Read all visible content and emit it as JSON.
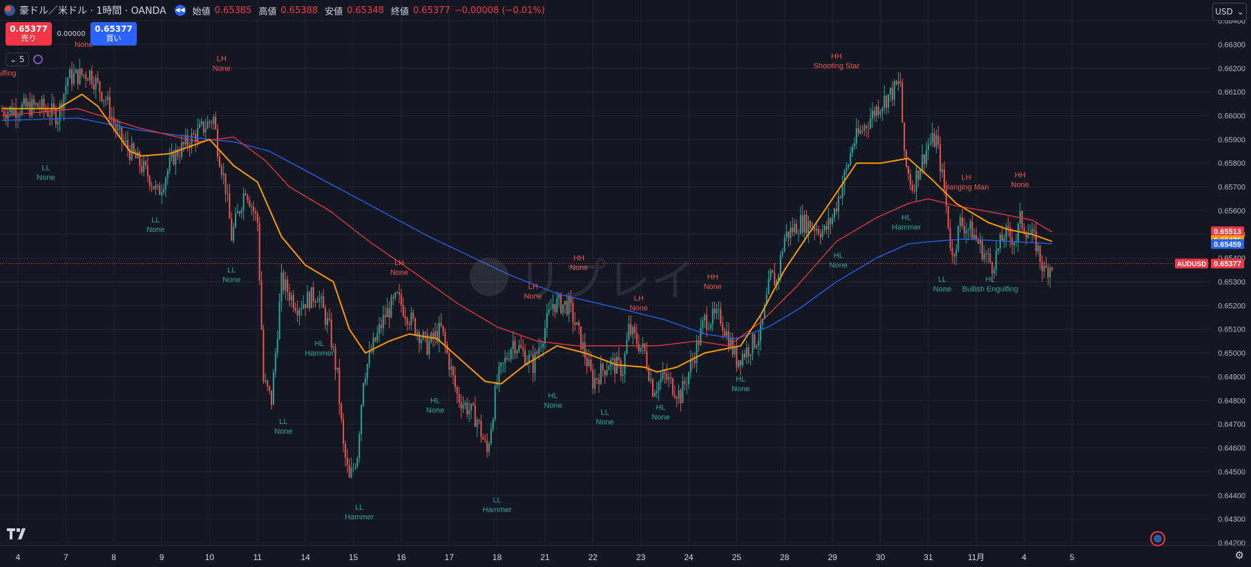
{
  "header": {
    "title": "豪ドル／米ドル · 1時間 · OANDA",
    "open_label": "始値",
    "open": "0.65385",
    "high_label": "高値",
    "high": "0.65388",
    "low_label": "安値",
    "low": "0.65348",
    "close_label": "終値",
    "close": "0.65377",
    "change": "−0.00008 (−0.01%)"
  },
  "trade": {
    "sell_price": "0.65377",
    "sell_label": "売り",
    "spread": "0.00000",
    "buy_price": "0.65377",
    "buy_label": "買い"
  },
  "indicator": {
    "count": "5"
  },
  "currency_menu": {
    "label": "USD"
  },
  "watermark": "リプレイ",
  "colors": {
    "background": "#131722",
    "up": "#26a69a",
    "down": "#ef5350",
    "ema_fast": "#ff9800",
    "ema_mid": "#f23645",
    "ema_slow": "#2962ff"
  },
  "chart_data": {
    "type": "candlestick",
    "symbol": "AUDUSD",
    "interval": "1時間",
    "ylim": [
      0.642,
      0.6647
    ],
    "y_ticks": [
      "0.66400",
      "0.66300",
      "0.66200",
      "0.66100",
      "0.66000",
      "0.65900",
      "0.65800",
      "0.65700",
      "0.65600",
      "0.65500",
      "0.65400",
      "0.65300",
      "0.65200",
      "0.65100",
      "0.65000",
      "0.64900",
      "0.64800",
      "0.64700",
      "0.64600",
      "0.64500",
      "0.64400",
      "0.64300",
      "0.64200"
    ],
    "x_ticks": [
      {
        "i": 0,
        "label": "4"
      },
      {
        "i": 24,
        "label": "7"
      },
      {
        "i": 48,
        "label": "8"
      },
      {
        "i": 72,
        "label": "9"
      },
      {
        "i": 96,
        "label": "10"
      },
      {
        "i": 120,
        "label": "11"
      },
      {
        "i": 144,
        "label": "14"
      },
      {
        "i": 168,
        "label": "15"
      },
      {
        "i": 192,
        "label": "16"
      },
      {
        "i": 216,
        "label": "17"
      },
      {
        "i": 240,
        "label": "18"
      },
      {
        "i": 264,
        "label": "21"
      },
      {
        "i": 288,
        "label": "22"
      },
      {
        "i": 312,
        "label": "23"
      },
      {
        "i": 336,
        "label": "24"
      },
      {
        "i": 360,
        "label": "25"
      },
      {
        "i": 384,
        "label": "28"
      },
      {
        "i": 408,
        "label": "29"
      },
      {
        "i": 432,
        "label": "30"
      },
      {
        "i": 456,
        "label": "31"
      },
      {
        "i": 480,
        "label": "11月"
      },
      {
        "i": 504,
        "label": "4"
      },
      {
        "i": 528,
        "label": "5"
      }
    ],
    "anchors": [
      [
        -8,
        0.6602
      ],
      [
        0,
        0.6603
      ],
      [
        10,
        0.6604
      ],
      [
        20,
        0.66
      ],
      [
        25,
        0.6616
      ],
      [
        36,
        0.6618
      ],
      [
        44,
        0.6607
      ],
      [
        50,
        0.6592
      ],
      [
        66,
        0.6574
      ],
      [
        70,
        0.6567
      ],
      [
        78,
        0.6583
      ],
      [
        84,
        0.6588
      ],
      [
        98,
        0.6599
      ],
      [
        100,
        0.6587
      ],
      [
        104,
        0.657
      ],
      [
        107,
        0.6549
      ],
      [
        114,
        0.657
      ],
      [
        120,
        0.6555
      ],
      [
        123,
        0.6488
      ],
      [
        127,
        0.648
      ],
      [
        132,
        0.653
      ],
      [
        140,
        0.652
      ],
      [
        150,
        0.6525
      ],
      [
        156,
        0.651
      ],
      [
        160,
        0.649
      ],
      [
        163,
        0.646
      ],
      [
        166,
        0.6446
      ],
      [
        170,
        0.6458
      ],
      [
        173,
        0.649
      ],
      [
        178,
        0.6503
      ],
      [
        184,
        0.6516
      ],
      [
        190,
        0.6523
      ],
      [
        196,
        0.6515
      ],
      [
        205,
        0.6503
      ],
      [
        212,
        0.651
      ],
      [
        220,
        0.6482
      ],
      [
        230,
        0.6472
      ],
      [
        235,
        0.6458
      ],
      [
        240,
        0.6488
      ],
      [
        248,
        0.6505
      ],
      [
        258,
        0.6495
      ],
      [
        268,
        0.6521
      ],
      [
        276,
        0.652
      ],
      [
        282,
        0.6505
      ],
      [
        288,
        0.6488
      ],
      [
        296,
        0.6496
      ],
      [
        303,
        0.6493
      ],
      [
        306,
        0.651
      ],
      [
        314,
        0.65
      ],
      [
        318,
        0.6485
      ],
      [
        324,
        0.649
      ],
      [
        332,
        0.6482
      ],
      [
        338,
        0.6497
      ],
      [
        344,
        0.6514
      ],
      [
        352,
        0.6515
      ],
      [
        360,
        0.6497
      ],
      [
        366,
        0.6502
      ],
      [
        372,
        0.6508
      ],
      [
        377,
        0.6532
      ],
      [
        380,
        0.653
      ],
      [
        384,
        0.6549
      ],
      [
        392,
        0.6555
      ],
      [
        398,
        0.6554
      ],
      [
        404,
        0.6551
      ],
      [
        408,
        0.6557
      ],
      [
        416,
        0.658
      ],
      [
        418,
        0.6588
      ],
      [
        430,
        0.6603
      ],
      [
        438,
        0.661
      ],
      [
        442,
        0.6614
      ],
      [
        444,
        0.6581
      ],
      [
        448,
        0.657
      ],
      [
        456,
        0.6588
      ],
      [
        460,
        0.659
      ],
      [
        464,
        0.6569
      ],
      [
        468,
        0.654
      ],
      [
        472,
        0.6555
      ],
      [
        478,
        0.6551
      ],
      [
        484,
        0.6542
      ],
      [
        488,
        0.6537
      ],
      [
        494,
        0.655
      ],
      [
        500,
        0.6548
      ],
      [
        502,
        0.6556
      ],
      [
        506,
        0.6551
      ],
      [
        510,
        0.6546
      ],
      [
        514,
        0.6534
      ],
      [
        518,
        0.6538
      ]
    ],
    "ema_fast": [
      [
        -8,
        0.6603
      ],
      [
        20,
        0.6603
      ],
      [
        32,
        0.6609
      ],
      [
        40,
        0.6604
      ],
      [
        56,
        0.6585
      ],
      [
        62,
        0.6583
      ],
      [
        76,
        0.6584
      ],
      [
        96,
        0.659
      ],
      [
        108,
        0.6579
      ],
      [
        120,
        0.6572
      ],
      [
        132,
        0.6549
      ],
      [
        144,
        0.6537
      ],
      [
        158,
        0.653
      ],
      [
        166,
        0.651
      ],
      [
        174,
        0.65
      ],
      [
        186,
        0.6505
      ],
      [
        196,
        0.6508
      ],
      [
        210,
        0.6506
      ],
      [
        222,
        0.6497
      ],
      [
        234,
        0.6488
      ],
      [
        242,
        0.6487
      ],
      [
        254,
        0.6495
      ],
      [
        270,
        0.6503
      ],
      [
        284,
        0.65
      ],
      [
        300,
        0.6495
      ],
      [
        314,
        0.6494
      ],
      [
        320,
        0.6492
      ],
      [
        330,
        0.6494
      ],
      [
        344,
        0.65
      ],
      [
        356,
        0.6502
      ],
      [
        362,
        0.6503
      ],
      [
        372,
        0.6516
      ],
      [
        384,
        0.6535
      ],
      [
        396,
        0.655
      ],
      [
        408,
        0.6565
      ],
      [
        420,
        0.658
      ],
      [
        432,
        0.658
      ],
      [
        446,
        0.6582
      ],
      [
        458,
        0.6573
      ],
      [
        470,
        0.6563
      ],
      [
        486,
        0.6555
      ],
      [
        496,
        0.6552
      ],
      [
        508,
        0.655
      ],
      [
        518,
        0.6547
      ]
    ],
    "ema_mid": [
      [
        -8,
        0.66
      ],
      [
        30,
        0.6603
      ],
      [
        60,
        0.6595
      ],
      [
        90,
        0.6589
      ],
      [
        108,
        0.6591
      ],
      [
        124,
        0.6581
      ],
      [
        136,
        0.657
      ],
      [
        156,
        0.656
      ],
      [
        176,
        0.6547
      ],
      [
        200,
        0.6533
      ],
      [
        220,
        0.6521
      ],
      [
        240,
        0.6511
      ],
      [
        260,
        0.6505
      ],
      [
        280,
        0.6503
      ],
      [
        300,
        0.6503
      ],
      [
        320,
        0.6503
      ],
      [
        340,
        0.6505
      ],
      [
        356,
        0.6503
      ],
      [
        372,
        0.6513
      ],
      [
        390,
        0.6528
      ],
      [
        410,
        0.6547
      ],
      [
        430,
        0.6557
      ],
      [
        446,
        0.6563
      ],
      [
        456,
        0.6565
      ],
      [
        470,
        0.6562
      ],
      [
        490,
        0.6559
      ],
      [
        508,
        0.6556
      ],
      [
        518,
        0.6551
      ]
    ],
    "ema_slow": [
      [
        -8,
        0.6598
      ],
      [
        30,
        0.6599
      ],
      [
        60,
        0.6594
      ],
      [
        96,
        0.659
      ],
      [
        108,
        0.6589
      ],
      [
        126,
        0.6585
      ],
      [
        146,
        0.6576
      ],
      [
        166,
        0.6567
      ],
      [
        186,
        0.6558
      ],
      [
        206,
        0.6549
      ],
      [
        226,
        0.6541
      ],
      [
        246,
        0.6533
      ],
      [
        270,
        0.6525
      ],
      [
        300,
        0.6519
      ],
      [
        324,
        0.6514
      ],
      [
        344,
        0.6508
      ],
      [
        360,
        0.6506
      ],
      [
        376,
        0.6511
      ],
      [
        392,
        0.6519
      ],
      [
        410,
        0.653
      ],
      [
        430,
        0.654
      ],
      [
        446,
        0.6546
      ],
      [
        458,
        0.6547
      ],
      [
        474,
        0.6548
      ],
      [
        498,
        0.6547
      ],
      [
        518,
        0.6546
      ]
    ],
    "price_labels": [
      {
        "label": "AUDUSD",
        "value": "0.65377",
        "y": 0.65377,
        "color": "#f23645"
      },
      {
        "value": "0.65513",
        "y": 0.65513,
        "color": "#f23645"
      },
      {
        "value": "0.65476",
        "y": 0.65476,
        "color": "#ff9800"
      },
      {
        "value": "0.65459",
        "y": 0.65459,
        "color": "#2962ff"
      }
    ],
    "annotations": [
      {
        "x": -15,
        "y": 0.6621,
        "lines": [
          "",
          "Bullish Engulfing"
        ],
        "color": "#ef5350"
      },
      {
        "x": 33,
        "y": 0.6633,
        "lines": [
          "",
          "None"
        ],
        "color": "#ef5350"
      },
      {
        "x": 102,
        "y": 0.6623,
        "lines": [
          "LH",
          "None"
        ],
        "color": "#ef5350"
      },
      {
        "x": 14,
        "y": 0.6577,
        "lines": [
          "LL",
          "None"
        ],
        "color": "#26a69a"
      },
      {
        "x": 69,
        "y": 0.6555,
        "lines": [
          "LL",
          "None"
        ],
        "color": "#26a69a"
      },
      {
        "x": 107,
        "y": 0.6534,
        "lines": [
          "LL",
          "None"
        ],
        "color": "#26a69a"
      },
      {
        "x": 151,
        "y": 0.6503,
        "lines": [
          "HL",
          "Hammer"
        ],
        "color": "#26a69a"
      },
      {
        "x": 133,
        "y": 0.647,
        "lines": [
          "LL",
          "None"
        ],
        "color": "#26a69a"
      },
      {
        "x": 171,
        "y": 0.6434,
        "lines": [
          "LL",
          "Hammer"
        ],
        "color": "#26a69a"
      },
      {
        "x": 191,
        "y": 0.6537,
        "lines": [
          "LH",
          "None"
        ],
        "color": "#ef5350"
      },
      {
        "x": 209,
        "y": 0.6479,
        "lines": [
          "HL",
          "None"
        ],
        "color": "#26a69a"
      },
      {
        "x": 240,
        "y": 0.6437,
        "lines": [
          "LL",
          "Hammer"
        ],
        "color": "#26a69a"
      },
      {
        "x": 258,
        "y": 0.6527,
        "lines": [
          "LH",
          "None"
        ],
        "color": "#ef5350"
      },
      {
        "x": 268,
        "y": 0.6481,
        "lines": [
          "HL",
          "None"
        ],
        "color": "#26a69a"
      },
      {
        "x": 281,
        "y": 0.6539,
        "lines": [
          "HH",
          "None"
        ],
        "color": "#ef5350"
      },
      {
        "x": 294,
        "y": 0.6474,
        "lines": [
          "LL",
          "None"
        ],
        "color": "#26a69a"
      },
      {
        "x": 311,
        "y": 0.6522,
        "lines": [
          "LH",
          "None"
        ],
        "color": "#ef5350"
      },
      {
        "x": 322,
        "y": 0.6476,
        "lines": [
          "HL",
          "None"
        ],
        "color": "#26a69a"
      },
      {
        "x": 348,
        "y": 0.6531,
        "lines": [
          "HH",
          "None"
        ],
        "color": "#ef5350"
      },
      {
        "x": 362,
        "y": 0.6488,
        "lines": [
          "HL",
          "None"
        ],
        "color": "#26a69a"
      },
      {
        "x": 410,
        "y": 0.6624,
        "lines": [
          "HH",
          "Shooting Star"
        ],
        "color": "#ef5350"
      },
      {
        "x": 411,
        "y": 0.654,
        "lines": [
          "HL",
          "None"
        ],
        "color": "#26a69a"
      },
      {
        "x": 445,
        "y": 0.6556,
        "lines": [
          "HL",
          "Hammer"
        ],
        "color": "#26a69a"
      },
      {
        "x": 475,
        "y": 0.6573,
        "lines": [
          "LH",
          "Hanging Man"
        ],
        "color": "#ef5350"
      },
      {
        "x": 463,
        "y": 0.653,
        "lines": [
          "LL",
          "None"
        ],
        "color": "#26a69a"
      },
      {
        "x": 487,
        "y": 0.653,
        "lines": [
          "HL",
          "Bullish Engulfing"
        ],
        "color": "#26a69a"
      },
      {
        "x": 502,
        "y": 0.6574,
        "lines": [
          "HH",
          "None"
        ],
        "color": "#ef5350"
      }
    ]
  }
}
